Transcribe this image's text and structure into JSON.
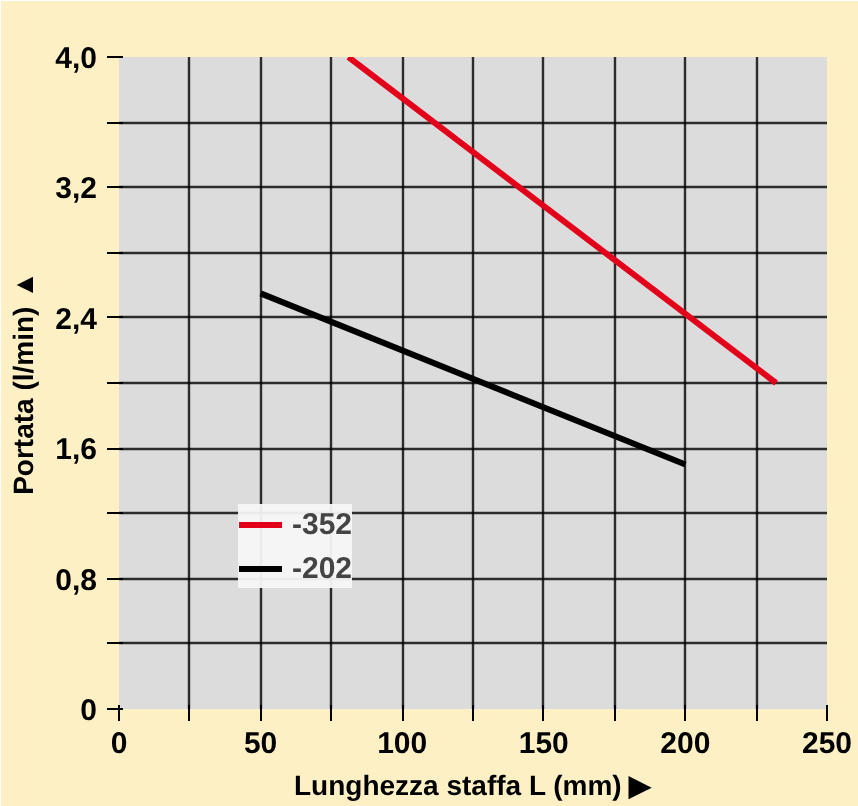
{
  "chart_data": {
    "type": "line",
    "xlabel": "Lunghezza staffa L (mm) ▶",
    "ylabel": "Portata (l/min) ▲",
    "series": [
      {
        "name": "-352",
        "color": "#e2001a",
        "x": [
          81,
          232
        ],
        "values": [
          4.0,
          2.0
        ]
      },
      {
        "name": "-202",
        "color": "#000000",
        "x": [
          50,
          200
        ],
        "values": [
          2.55,
          1.5
        ]
      }
    ],
    "xlim": [
      0,
      250
    ],
    "ylim": [
      0,
      4.0
    ],
    "xticks": [
      0,
      {
        "value": 25,
        "label": null
      },
      50,
      {
        "value": 75,
        "label": null
      },
      100,
      {
        "value": 125,
        "label": null
      },
      150,
      {
        "value": 175,
        "label": null
      },
      200,
      {
        "value": 225,
        "label": null
      },
      250
    ],
    "yticks": [
      0,
      {
        "value": 0.4,
        "label": null
      },
      {
        "value": 0.8,
        "label": "0,8"
      },
      {
        "value": 1.2,
        "label": null
      },
      {
        "value": 1.6,
        "label": "1,6"
      },
      {
        "value": 2.0,
        "label": null
      },
      {
        "value": 2.4,
        "label": "2,4"
      },
      {
        "value": 2.8,
        "label": null
      },
      {
        "value": 3.2,
        "label": "3,2"
      },
      {
        "value": 3.6,
        "label": null
      },
      {
        "value": 4.0,
        "label": "4,0"
      }
    ],
    "grid": true,
    "legend": "bottom left",
    "line_style": "solid",
    "marker": "none"
  }
}
